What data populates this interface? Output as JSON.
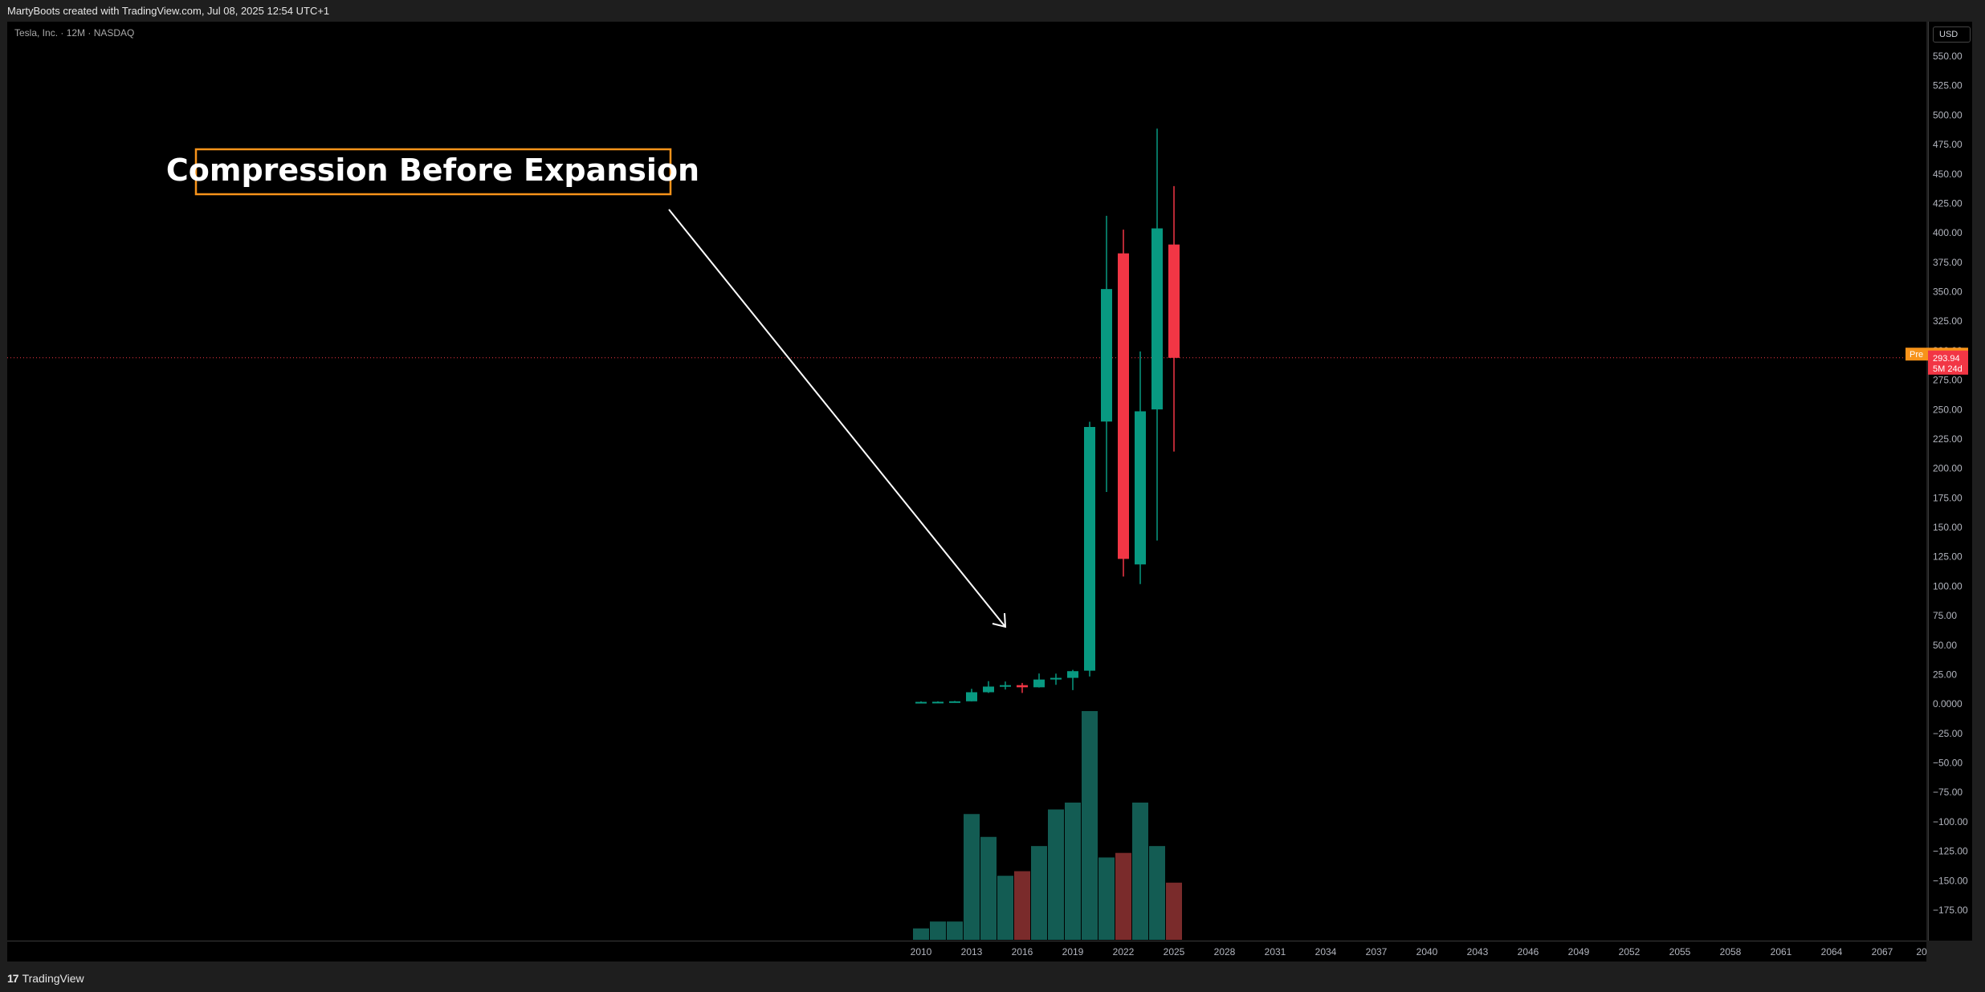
{
  "header": {
    "text": "MartyBoots created with TradingView.com, Jul 08, 2025 12:54 UTC+1"
  },
  "symbol": {
    "text": "Tesla, Inc. · 12M · NASDAQ"
  },
  "currency": {
    "label": "USD"
  },
  "footer": {
    "brand": "TradingView",
    "logo": "TV-logo-icon"
  },
  "annotation": {
    "text": "Compression Before Expansion"
  },
  "price_markers": {
    "pre_tag": "Pre",
    "pre_price": "297.05",
    "last_price": "293.94",
    "countdown": "5M 24d"
  },
  "colors": {
    "up": "#089981",
    "down": "#f23645",
    "vol_up": "#135c53",
    "vol_down": "#7a2b2b",
    "pre": "#f7931a",
    "price_line": "#f23645",
    "annotation_border": "#f7931a"
  },
  "chart_data": {
    "type": "candlestick",
    "yaxis_ticks": [
      "550.00",
      "525.00",
      "500.00",
      "475.00",
      "450.00",
      "425.00",
      "400.00",
      "375.00",
      "350.00",
      "325.00",
      "300.00",
      "275.00",
      "250.00",
      "225.00",
      "200.00",
      "175.00",
      "150.00",
      "125.00",
      "100.00",
      "75.00",
      "50.00",
      "25.00",
      "0.0000",
      "−25.00",
      "−50.00",
      "−75.00",
      "−100.00",
      "−125.00",
      "−150.00",
      "−175.00"
    ],
    "ylim": [
      -175,
      550
    ],
    "xaxis_ticks": [
      "2010",
      "2013",
      "2016",
      "2019",
      "2022",
      "2025",
      "2028",
      "2031",
      "2034",
      "2037",
      "2040",
      "2043",
      "2046",
      "2049",
      "2052",
      "2055",
      "2058",
      "2061",
      "2064",
      "2067",
      "20"
    ],
    "candles": [
      {
        "year": 2010,
        "open": 1.3,
        "high": 2.3,
        "low": 1.0,
        "close": 1.8
      },
      {
        "year": 2011,
        "open": 1.8,
        "high": 2.3,
        "low": 1.3,
        "close": 1.9
      },
      {
        "year": 2012,
        "open": 1.9,
        "high": 2.6,
        "low": 1.5,
        "close": 2.3
      },
      {
        "year": 2013,
        "open": 2.3,
        "high": 12.9,
        "low": 2.2,
        "close": 10.0
      },
      {
        "year": 2014,
        "open": 10.0,
        "high": 19.4,
        "low": 9.4,
        "close": 14.8
      },
      {
        "year": 2015,
        "open": 14.8,
        "high": 19.1,
        "low": 12.3,
        "close": 16.0
      },
      {
        "year": 2016,
        "open": 16.0,
        "high": 17.9,
        "low": 9.4,
        "close": 14.2
      },
      {
        "year": 2017,
        "open": 14.2,
        "high": 25.9,
        "low": 14.0,
        "close": 20.8
      },
      {
        "year": 2018,
        "open": 20.8,
        "high": 25.8,
        "low": 16.3,
        "close": 22.2
      },
      {
        "year": 2019,
        "open": 22.2,
        "high": 29.0,
        "low": 11.8,
        "close": 27.9
      },
      {
        "year": 2020,
        "open": 28.3,
        "high": 239.6,
        "low": 23.4,
        "close": 235.2
      },
      {
        "year": 2021,
        "open": 239.8,
        "high": 414.5,
        "low": 180.0,
        "close": 352.3
      },
      {
        "year": 2022,
        "open": 382.6,
        "high": 402.7,
        "low": 108.2,
        "close": 123.2
      },
      {
        "year": 2023,
        "open": 118.5,
        "high": 299.3,
        "low": 101.8,
        "close": 248.5
      },
      {
        "year": 2024,
        "open": 250.1,
        "high": 488.5,
        "low": 138.8,
        "close": 403.8
      },
      {
        "year": 2025,
        "open": 390.1,
        "high": 439.7,
        "low": 214.3,
        "close": 293.9
      }
    ],
    "volume_relative": [
      0.05,
      0.08,
      0.08,
      0.55,
      0.45,
      0.28,
      0.3,
      0.41,
      0.57,
      0.6,
      1.0,
      0.36,
      0.38,
      0.6,
      0.41,
      0.25
    ],
    "volume_direction": [
      "up",
      "up",
      "up",
      "up",
      "up",
      "up",
      "down",
      "up",
      "up",
      "up",
      "up",
      "up",
      "down",
      "up",
      "up",
      "down"
    ],
    "last_price": 293.94,
    "pre_market_price": 297.05
  }
}
